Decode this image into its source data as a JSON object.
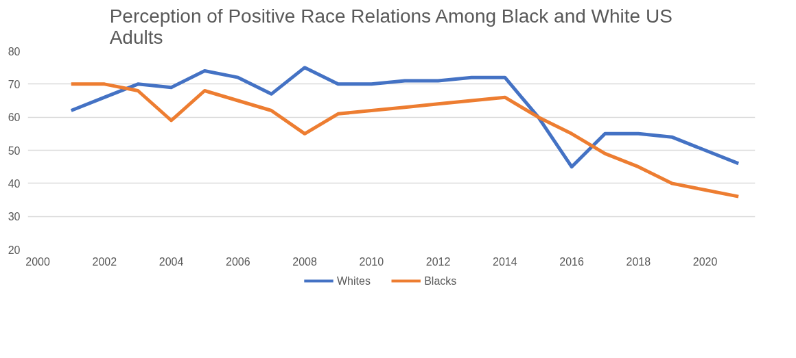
{
  "chart_data": {
    "type": "line",
    "title": "Perception of Positive Race Relations Among Black and White US\nAdults",
    "x": [
      2001,
      2002,
      2003,
      2004,
      2005,
      2006,
      2007,
      2008,
      2009,
      2010,
      2011,
      2012,
      2013,
      2014,
      2015,
      2016,
      2017,
      2018,
      2019,
      2020,
      2021
    ],
    "series": [
      {
        "name": "Whites",
        "color": "#4472c4",
        "values": [
          62,
          66,
          70,
          69,
          74,
          72,
          67,
          75,
          70,
          70,
          71,
          71,
          72,
          72,
          60,
          45,
          55,
          55,
          54,
          50,
          46
        ]
      },
      {
        "name": "Blacks",
        "color": "#ed7d31",
        "values": [
          70,
          70,
          68,
          59,
          68,
          65,
          62,
          55,
          61,
          62,
          63,
          64,
          65,
          66,
          60,
          55,
          49,
          45,
          40,
          38,
          36
        ]
      }
    ],
    "xlim": [
      1999.7,
      2021.5
    ],
    "xticks": [
      2000,
      2002,
      2004,
      2006,
      2008,
      2010,
      2012,
      2014,
      2016,
      2018,
      2020
    ],
    "ylim": [
      20,
      80
    ],
    "yticks": [
      20,
      30,
      40,
      50,
      60,
      70,
      80
    ],
    "grid": "y",
    "legend": "bottom",
    "marker": "none",
    "line_style": "solid"
  }
}
